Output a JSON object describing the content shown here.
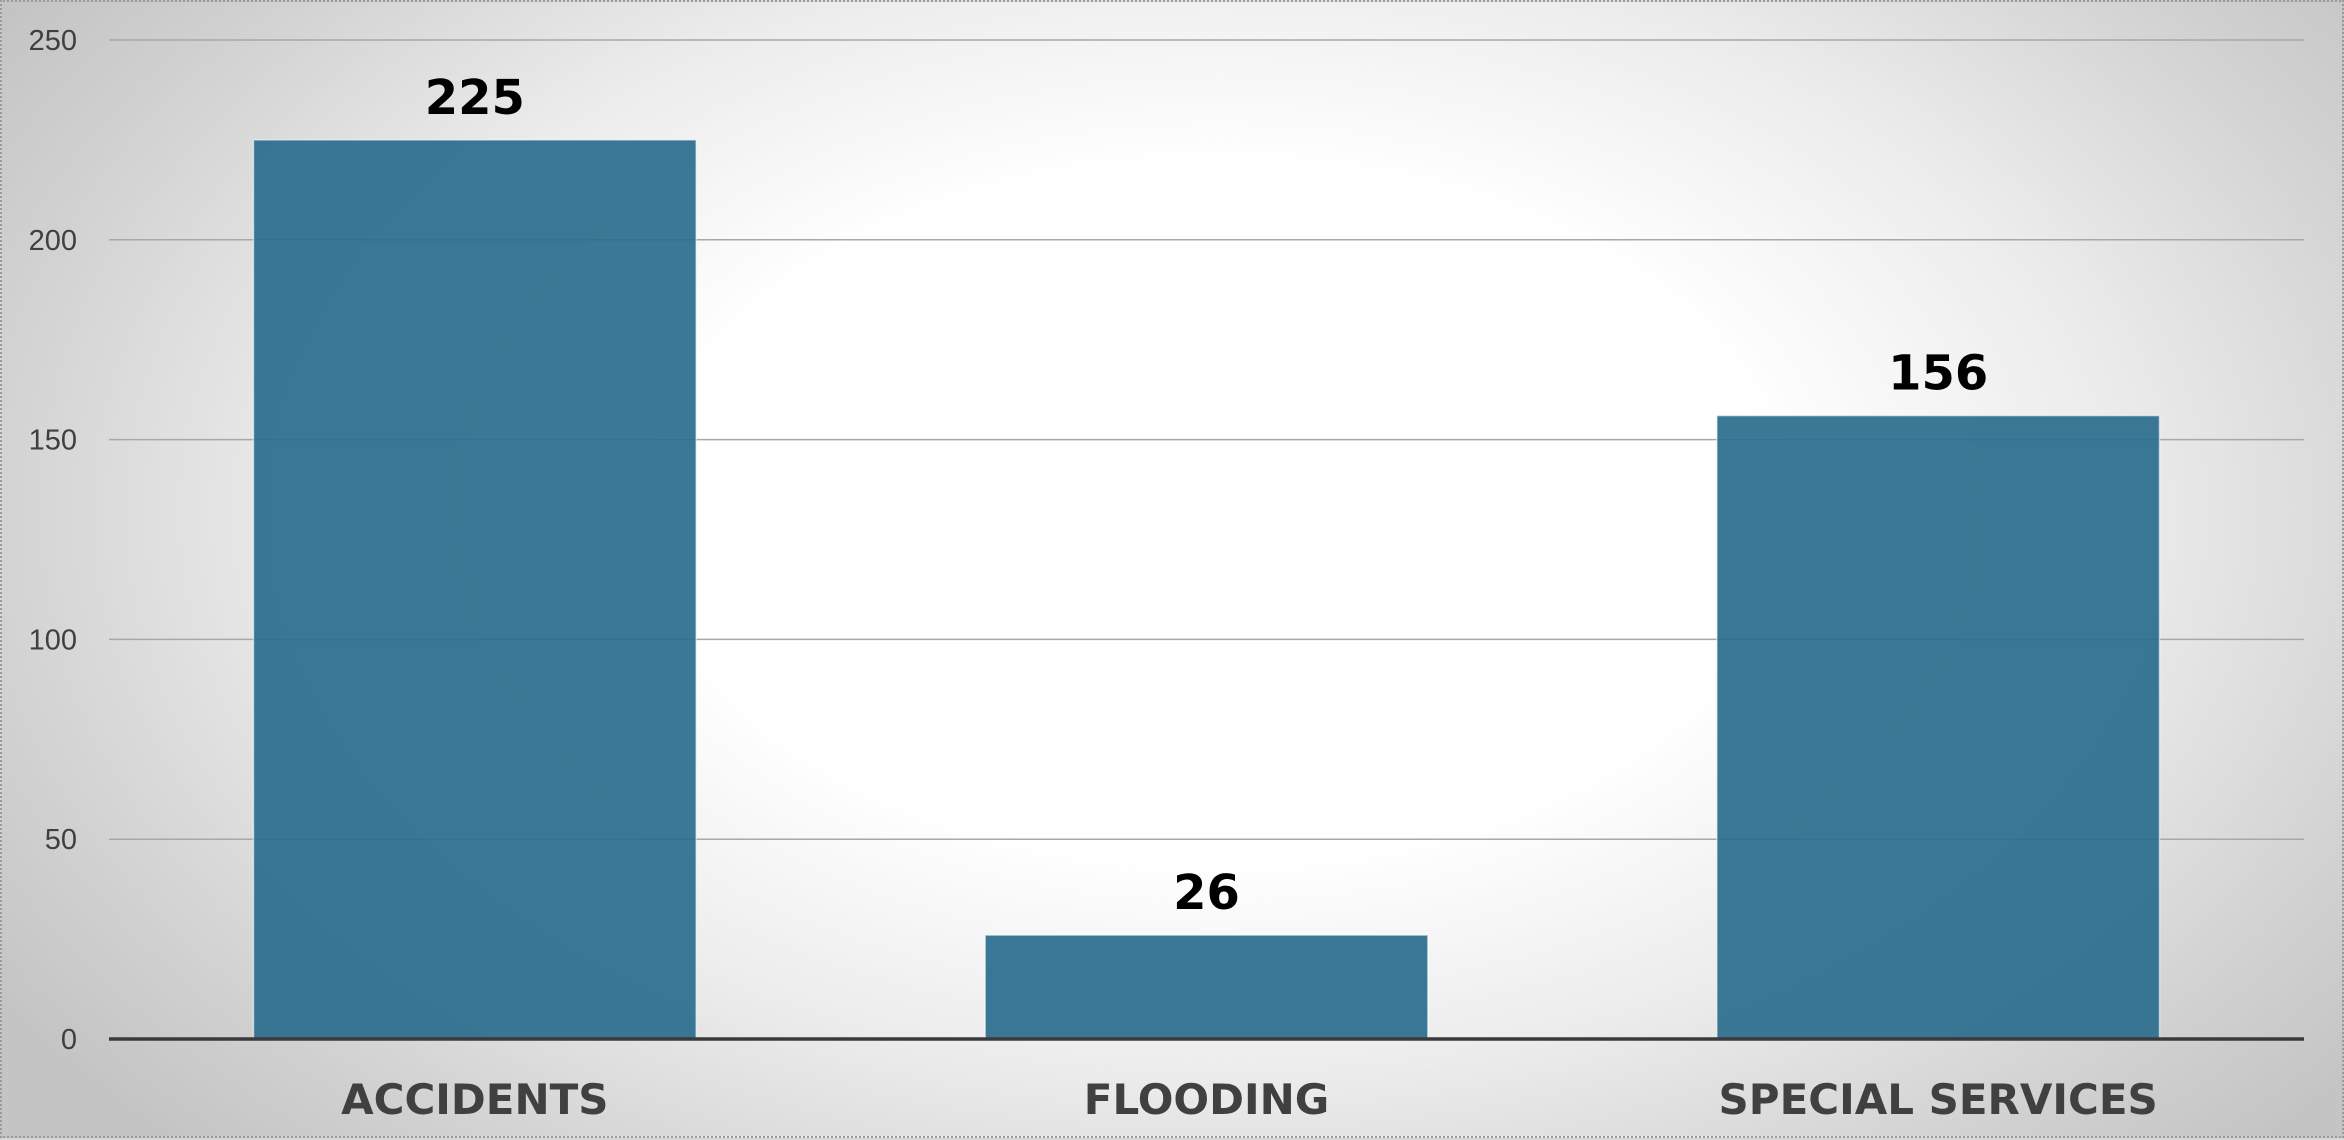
{
  "chart_data": {
    "type": "bar",
    "categories": [
      "ACCIDENTS",
      "FLOODING",
      "SPECIAL SERVICES"
    ],
    "values": [
      225,
      26,
      156
    ],
    "data_labels": [
      "225",
      "26",
      "156"
    ],
    "yticks": [
      "0",
      "50",
      "100",
      "150",
      "200",
      "250"
    ],
    "ylim": [
      0,
      250
    ],
    "ytick_step": 50,
    "grid": true,
    "legend": "none",
    "title": "",
    "xlabel": "",
    "ylabel": "",
    "colors": {
      "bar": "#2a6d8c",
      "gridline": "#a8a8a8",
      "baseline": "#3a3a3a"
    }
  }
}
